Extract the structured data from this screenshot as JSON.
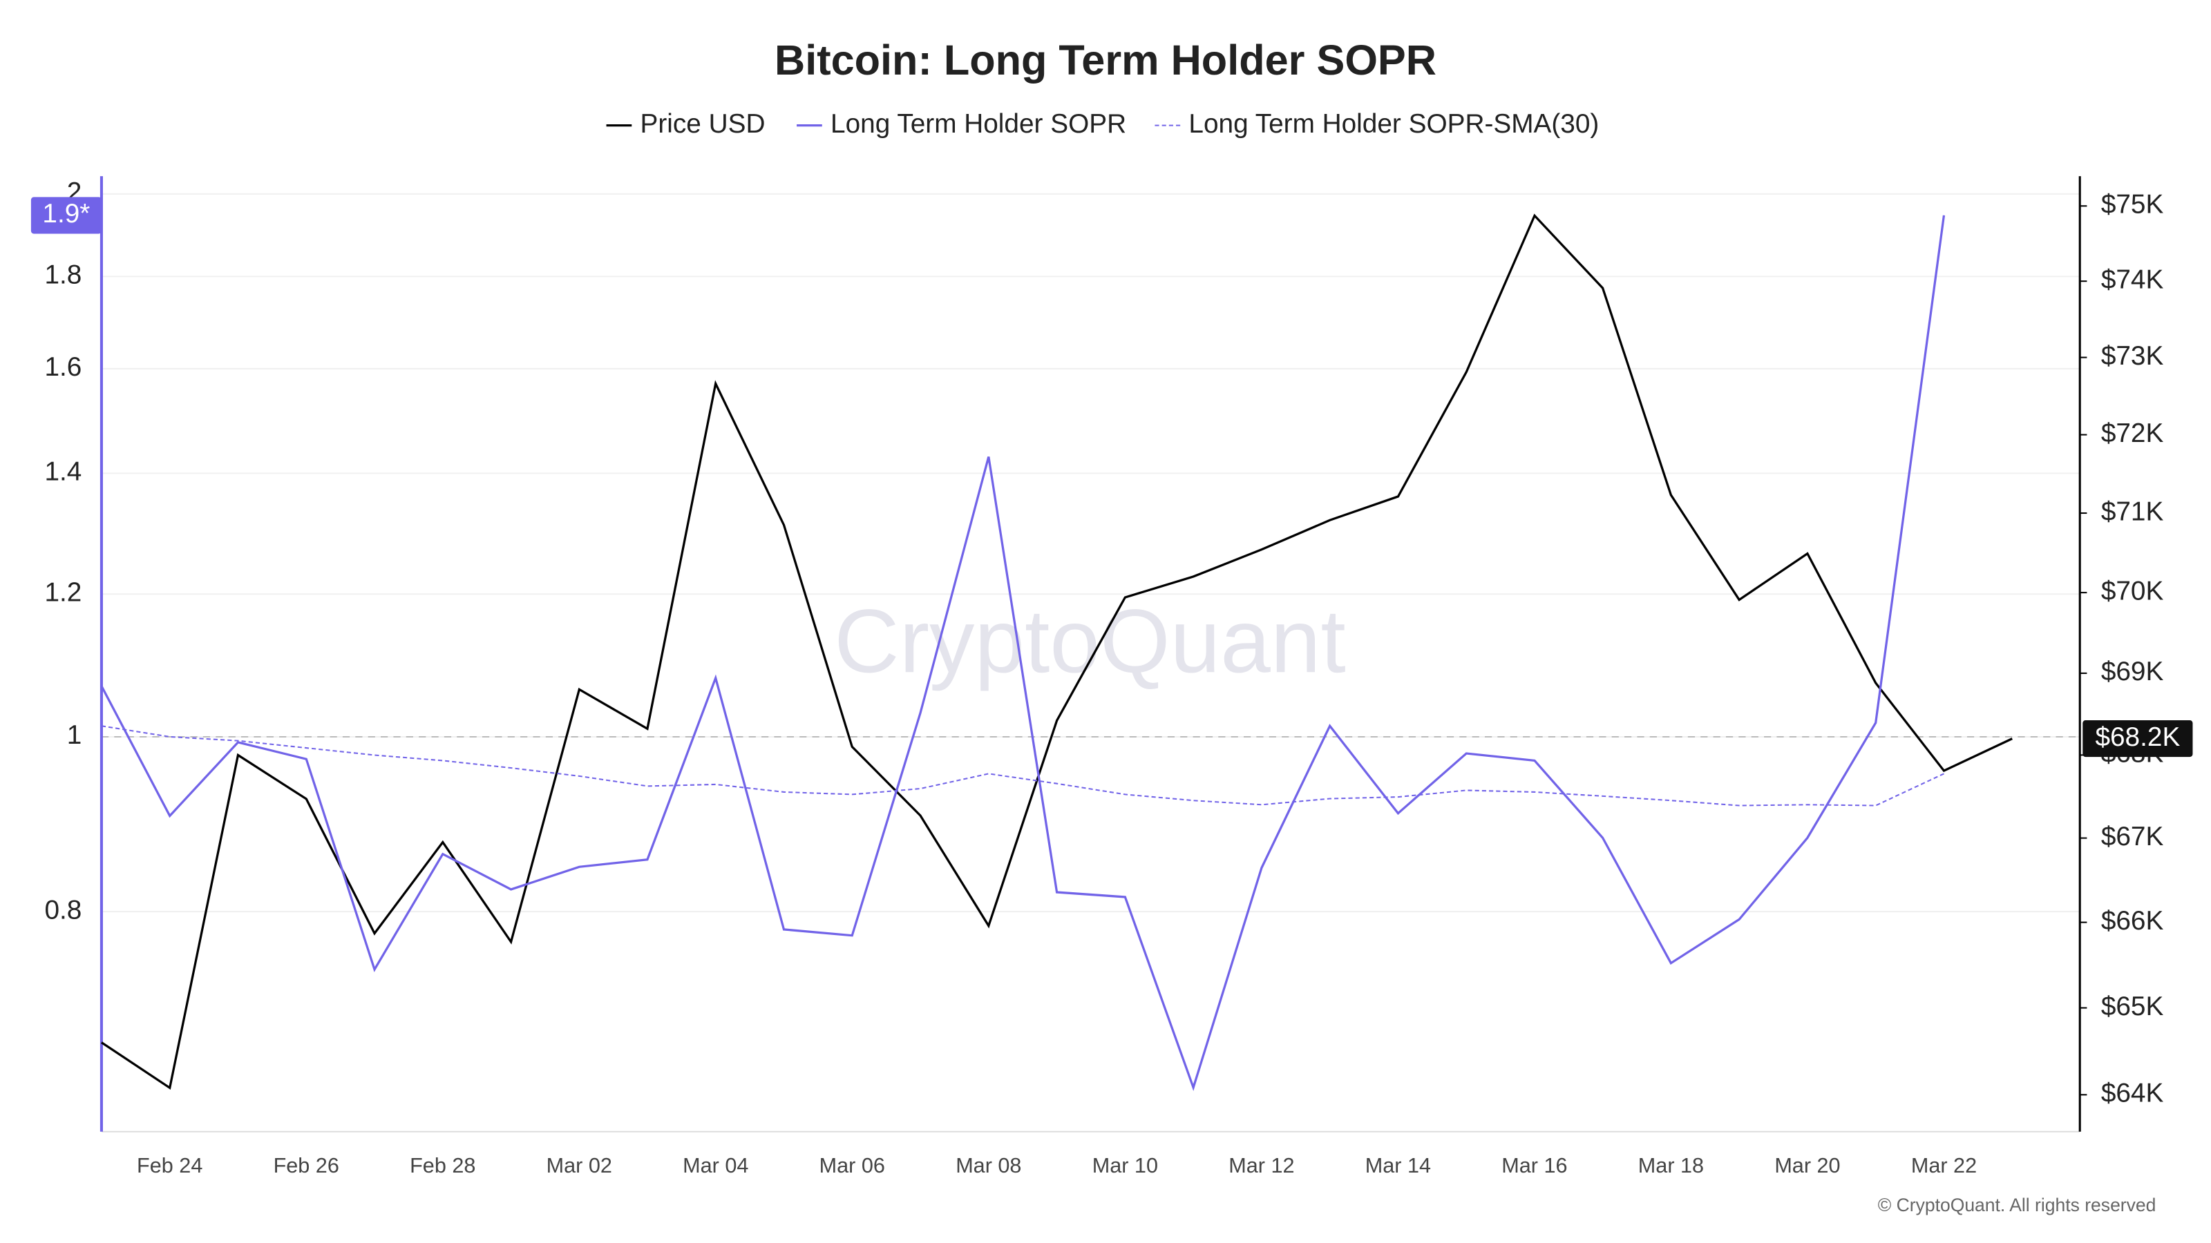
{
  "chart_data": {
    "type": "line",
    "title": "Bitcoin: Long Term Holder SOPR",
    "categories": [
      null,
      "Feb 24",
      null,
      "Feb 26",
      null,
      "Feb 28",
      null,
      "Mar 02",
      null,
      "Mar 04",
      null,
      "Mar 06",
      null,
      "Mar 08",
      null,
      "Mar 10",
      null,
      "Mar 12",
      null,
      "Mar 14",
      null,
      "Mar 16",
      null,
      "Mar 18",
      null,
      "Mar 20",
      null,
      "Mar 22",
      null
    ],
    "series": [
      {
        "name": "Price USD",
        "color": "#000000",
        "axis": "y2",
        "line_style": "solid",
        "current_label": "$68.2K",
        "values": [
          64600,
          64080,
          68000,
          67470,
          65870,
          66950,
          65770,
          68800,
          68320,
          72660,
          70850,
          68100,
          67270,
          65960,
          68420,
          69940,
          70200,
          70540,
          70910,
          71210,
          72810,
          74870,
          73910,
          71230,
          69910,
          70490,
          68880,
          67810,
          68200
        ]
      },
      {
        "name": "Long Term Holder SOPR",
        "color": "#7163e8",
        "line_style": "solid",
        "current_label": "1.9*",
        "values": [
          1.067,
          0.904,
          0.993,
          0.972,
          0.743,
          0.861,
          0.823,
          0.847,
          0.855,
          1.078,
          0.782,
          0.776,
          1.031,
          1.43,
          0.82,
          0.815,
          0.639,
          0.846,
          1.014,
          0.907,
          0.979,
          0.97,
          0.879,
          0.749,
          0.792,
          0.879,
          1.018,
          1.946,
          null
        ]
      },
      {
        "name": "Long Term Holder SOPR-SMA(30)",
        "color": "#7163e8",
        "line_style": "dashed",
        "values": [
          1.014,
          1.0,
          0.995,
          0.986,
          0.977,
          0.97,
          0.961,
          0.951,
          0.939,
          0.941,
          0.932,
          0.929,
          0.936,
          0.954,
          0.942,
          0.929,
          0.922,
          0.917,
          0.924,
          0.926,
          0.934,
          0.932,
          0.927,
          0.922,
          0.916,
          0.917,
          0.916,
          0.954,
          null
        ]
      }
    ],
    "yscale": "log",
    "ylim": [
      0.604,
      2.046
    ],
    "yticks": [
      0.8,
      1,
      1.2,
      1.4,
      1.6,
      1.8,
      2
    ],
    "y2scale": "log",
    "y2lim": [
      63580,
      75400
    ],
    "y2ticks": [
      {
        "value": 64000,
        "label": "$64K"
      },
      {
        "value": 65000,
        "label": "$65K"
      },
      {
        "value": 66000,
        "label": "$66K"
      },
      {
        "value": 67000,
        "label": "$67K"
      },
      {
        "value": 68000,
        "label": "$68K"
      },
      {
        "value": 69000,
        "label": "$69K"
      },
      {
        "value": 70000,
        "label": "$70K"
      },
      {
        "value": 71000,
        "label": "$71K"
      },
      {
        "value": 72000,
        "label": "$72K"
      },
      {
        "value": 73000,
        "label": "$73K"
      },
      {
        "value": 74000,
        "label": "$74K"
      },
      {
        "value": 75000,
        "label": "$75K"
      }
    ],
    "reference_line": 1,
    "grid": true,
    "legend": "top",
    "watermark": "CryptoQuant",
    "footer": "© CryptoQuant. All rights reserved"
  }
}
